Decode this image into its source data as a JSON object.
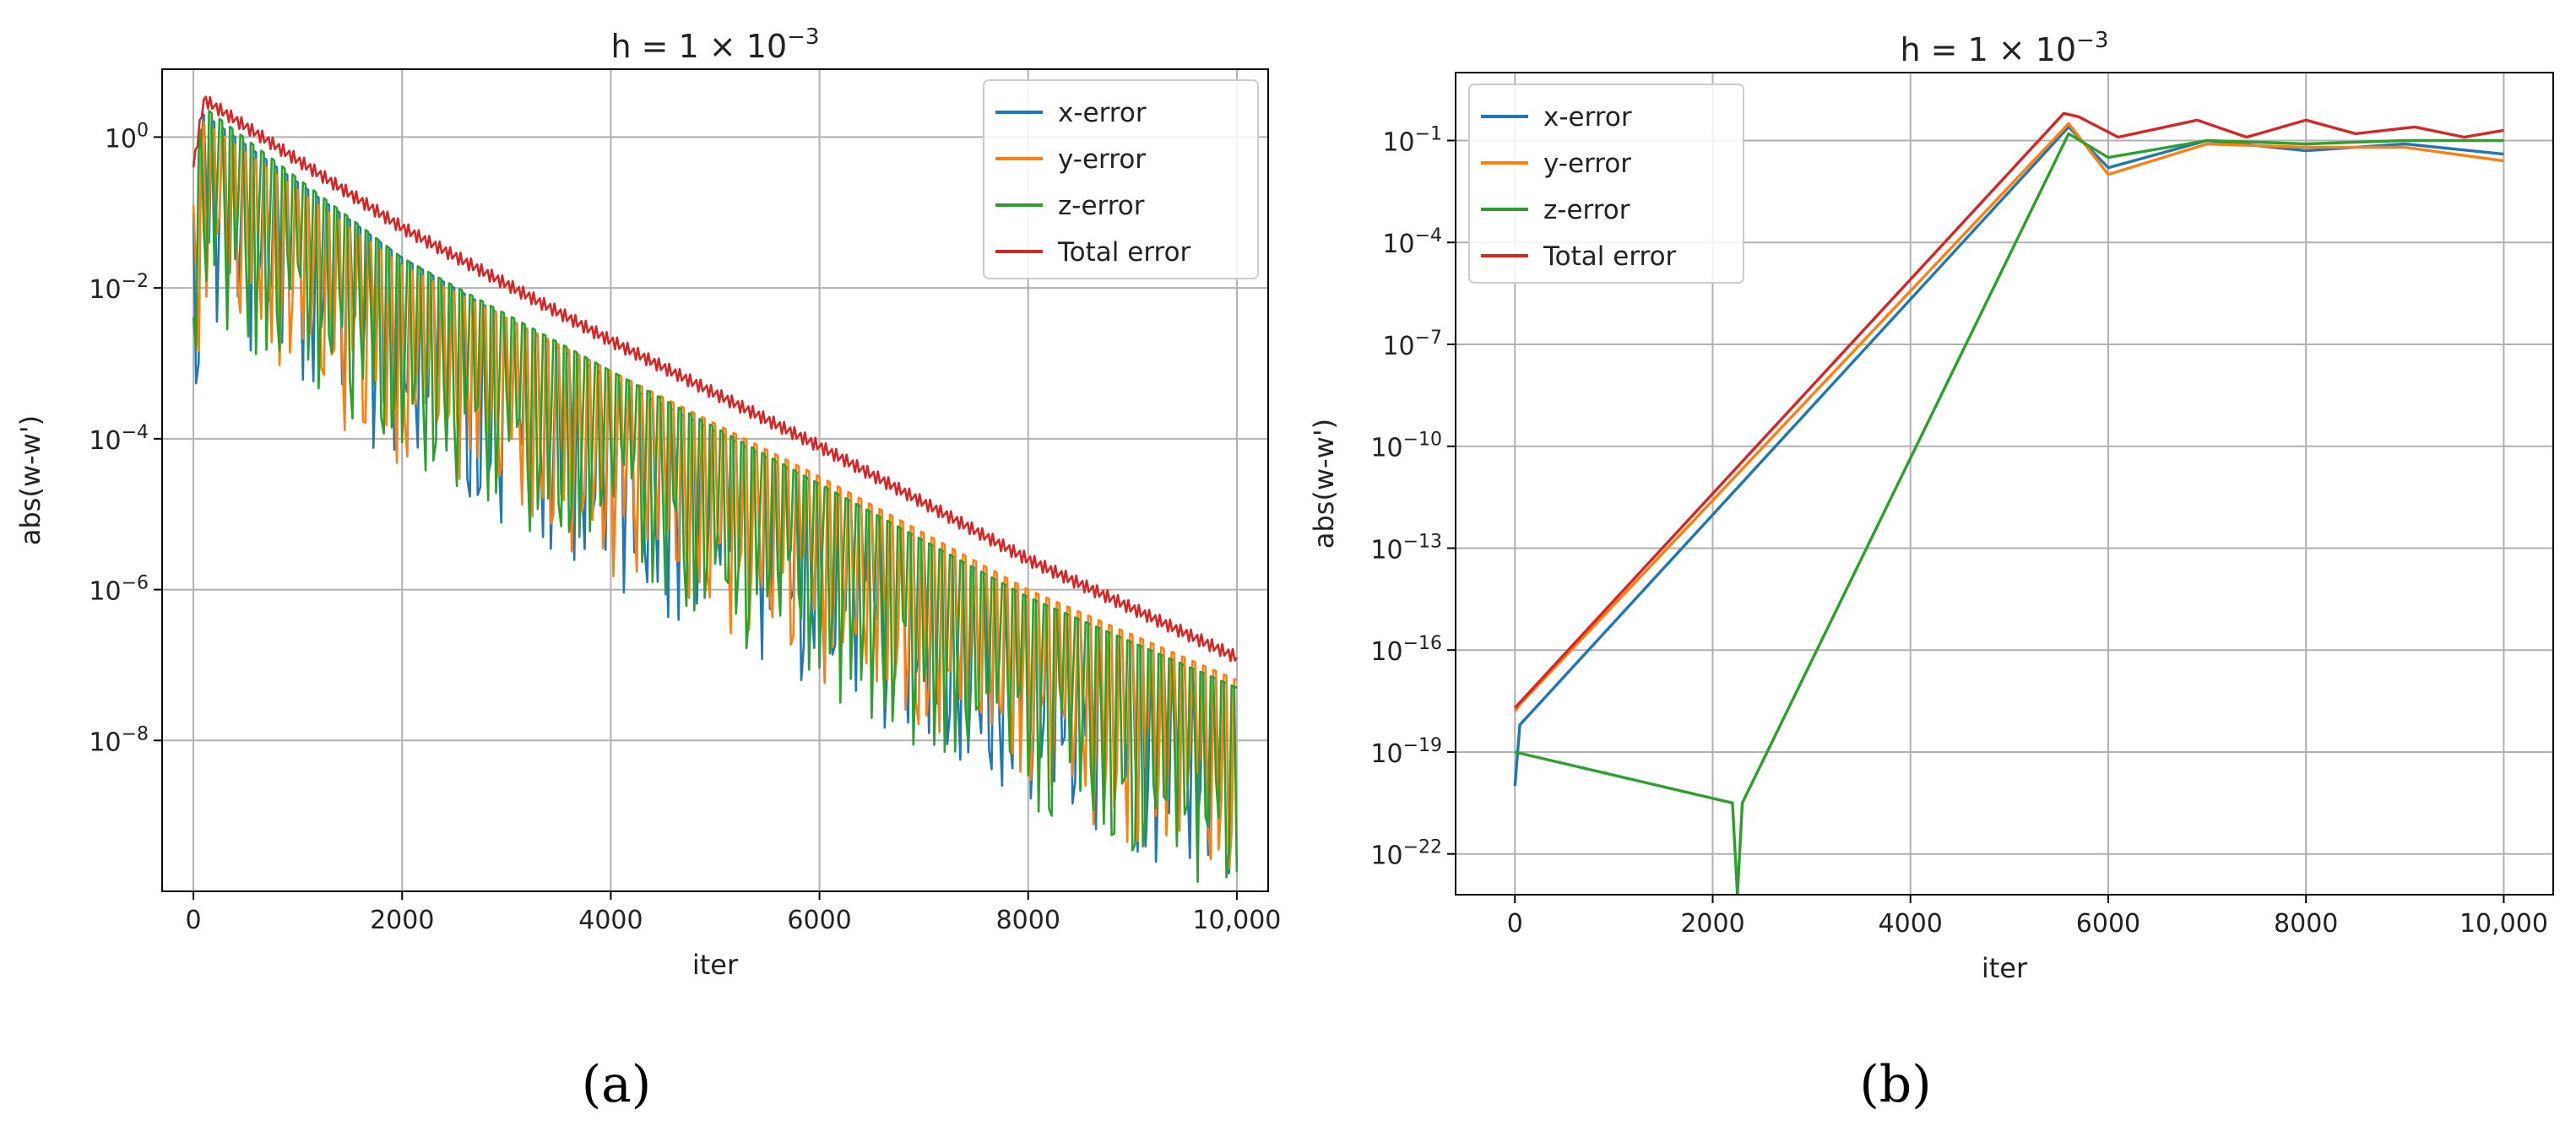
{
  "chart_data": [
    {
      "type": "line",
      "panel": "a",
      "title_main": "h = 1 × 10",
      "title_exp": "−3",
      "xlabel": "iter",
      "ylabel": "abs(w-w')",
      "yscale": "log",
      "xlim": [
        -300,
        10300
      ],
      "ylim_log10": [
        -10.0,
        0.9
      ],
      "grid": true,
      "legend_position": "top-right",
      "xticks": [
        0,
        2000,
        4000,
        6000,
        8000,
        10000
      ],
      "xtick_labels": [
        "0",
        "2000",
        "4000",
        "6000",
        "8000",
        "10,000"
      ],
      "ytick_exponents": [
        0,
        -2,
        -4,
        -6,
        -8
      ],
      "ytick_labels": [
        {
          "base": "10",
          "exp": "0"
        },
        {
          "base": "10",
          "exp": "−2"
        },
        {
          "base": "10",
          "exp": "−4"
        },
        {
          "base": "10",
          "exp": "−6"
        },
        {
          "base": "10",
          "exp": "−8"
        }
      ],
      "series": [
        {
          "name": "x-error",
          "label": "x-error",
          "color": "#1f77b4",
          "x": [
            0,
            100,
            2000,
            4000,
            6000,
            8000,
            10000
          ],
          "log10_peak": [
            -1.0,
            0.3,
            -1.6,
            -3.2,
            -4.6,
            -6.1,
            -7.3
          ],
          "oscillating": true
        },
        {
          "name": "y-error",
          "label": "y-error",
          "color": "#ff7f0e",
          "x": [
            0,
            100,
            2000,
            4000,
            6000,
            8000,
            10000
          ],
          "log10_peak": [
            -0.9,
            0.2,
            -1.7,
            -3.1,
            -4.5,
            -6.0,
            -7.2
          ],
          "oscillating": true
        },
        {
          "name": "z-error",
          "label": "z-error",
          "color": "#2ca02c",
          "x": [
            0,
            100,
            2000,
            4000,
            6000,
            8000,
            10000
          ],
          "log10_peak": [
            -0.8,
            0.4,
            -1.6,
            -3.1,
            -4.6,
            -6.1,
            -7.3
          ],
          "oscillating": true
        },
        {
          "name": "total-error",
          "label": "Total error",
          "color": "#d62728",
          "x": [
            0,
            100,
            2000,
            4000,
            6000,
            8000,
            10000
          ],
          "log10_peak": [
            -0.4,
            0.5,
            -1.2,
            -2.7,
            -4.1,
            -5.6,
            -6.9
          ],
          "oscillating": false
        }
      ],
      "sublabel": "(a)"
    },
    {
      "type": "line",
      "panel": "b",
      "title_main": "h = 1 × 10",
      "title_exp": "−3",
      "xlabel": "iter",
      "ylabel": "abs(w-w')",
      "yscale": "log",
      "xlim": [
        -600,
        10500
      ],
      "ylim_log10": [
        -23.2,
        1.0
      ],
      "grid": true,
      "legend_position": "top-left",
      "xticks": [
        0,
        2000,
        4000,
        6000,
        8000,
        10000
      ],
      "xtick_labels": [
        "0",
        "2000",
        "4000",
        "6000",
        "8000",
        "10,000"
      ],
      "ytick_exponents": [
        -1,
        -4,
        -7,
        -10,
        -13,
        -16,
        -19,
        -22
      ],
      "ytick_labels": [
        {
          "base": "10",
          "exp": "−1"
        },
        {
          "base": "10",
          "exp": "−4"
        },
        {
          "base": "10",
          "exp": "−7"
        },
        {
          "base": "10",
          "exp": "−10"
        },
        {
          "base": "10",
          "exp": "−13"
        },
        {
          "base": "10",
          "exp": "−16"
        },
        {
          "base": "10",
          "exp": "−19"
        },
        {
          "base": "10",
          "exp": "−22"
        }
      ],
      "series": [
        {
          "name": "x-error",
          "label": "x-error",
          "color": "#1f77b4",
          "x": [
            0,
            50,
            5600,
            6000,
            7000,
            8000,
            9000,
            10000
          ],
          "log10_value": [
            -20.0,
            -18.2,
            -0.6,
            -1.8,
            -1.0,
            -1.3,
            -1.1,
            -1.4
          ]
        },
        {
          "name": "y-error",
          "label": "y-error",
          "color": "#ff7f0e",
          "x": [
            0,
            50,
            5600,
            6000,
            7000,
            8000,
            9000,
            10000
          ],
          "log10_value": [
            -17.8,
            -17.6,
            -0.5,
            -2.0,
            -1.1,
            -1.2,
            -1.2,
            -1.6
          ]
        },
        {
          "name": "z-error",
          "label": "z-error",
          "color": "#2ca02c",
          "x": [
            0,
            2200,
            2250,
            2300,
            5600,
            6000,
            7000,
            8000,
            9000,
            10000
          ],
          "log10_value": [
            -19.0,
            -20.5,
            -23.2,
            -20.5,
            -0.8,
            -1.5,
            -1.0,
            -1.1,
            -1.0,
            -1.0
          ]
        },
        {
          "name": "total-error",
          "label": "Total error",
          "color": "#d62728",
          "x": [
            0,
            5550,
            5700,
            6100,
            6900,
            7400,
            8000,
            8500,
            9100,
            9600,
            10000
          ],
          "log10_value": [
            -17.7,
            -0.2,
            -0.3,
            -0.9,
            -0.4,
            -0.9,
            -0.4,
            -0.8,
            -0.6,
            -0.9,
            -0.7
          ]
        }
      ],
      "sublabel": "(b)"
    }
  ]
}
